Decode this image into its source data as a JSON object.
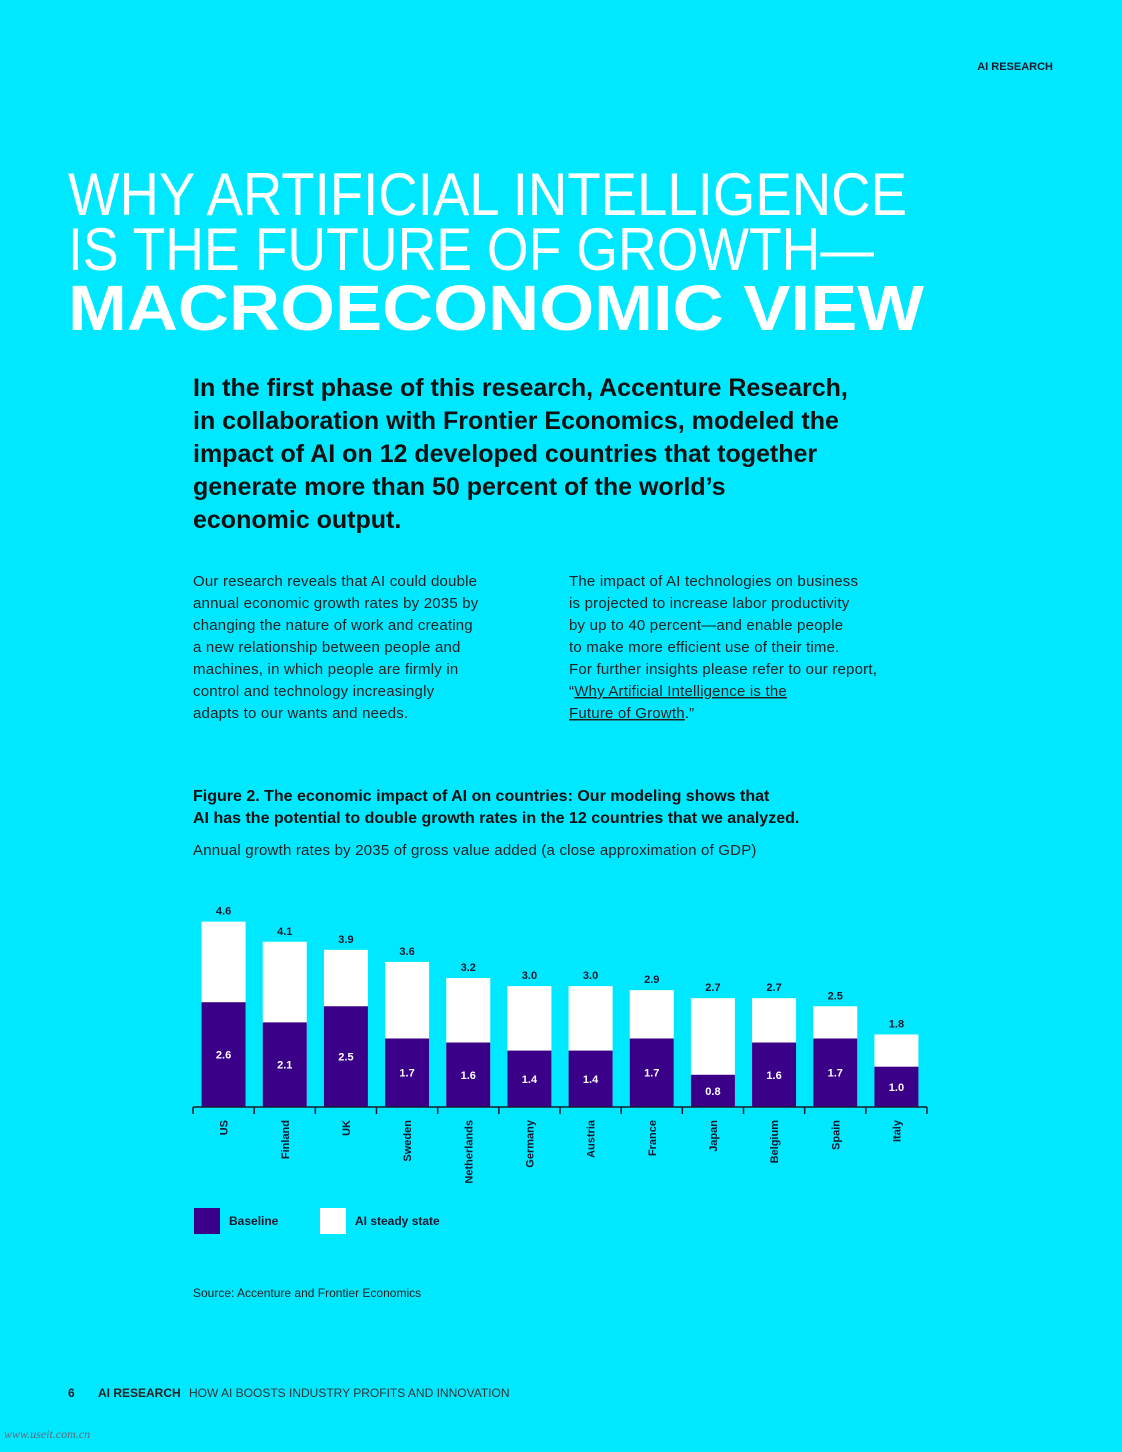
{
  "header": {
    "section": "AI RESEARCH"
  },
  "title": {
    "lines": [
      "WHY ARTIFICIAL INTELLIGENCE",
      "IS THE FUTURE OF GROWTH—"
    ],
    "emphasis": "MACROECONOMIC VIEW"
  },
  "intro": [
    "In the first phase of this research, Accenture Research,",
    "in collaboration with Frontier Economics, modeled the",
    "impact of AI on 12 developed countries that together",
    "generate more than 50 percent of the world’s",
    "economic output."
  ],
  "body": {
    "left": [
      "Our research reveals that AI could double",
      "annual economic growth rates by 2035 by",
      "changing the nature of work and creating",
      "a new relationship between people and",
      "machines, in which people are firmly in",
      "control and technology increasingly",
      "adapts to our wants and needs."
    ],
    "right": [
      "The impact of AI technologies on business",
      "is projected to increase labor productivity",
      "by up to 40 percent—and enable people",
      "to make more efficient use of their time.",
      "For further insights please refer to our report,"
    ],
    "link_open": "“",
    "link": [
      "Why Artificial Intelligence is the",
      "Future of Growth"
    ],
    "link_close": ".”"
  },
  "chart_data": {
    "type": "bar",
    "title": [
      "Figure 2. The economic impact of AI on countries: Our modeling shows that",
      "AI has the potential to double growth rates in the 12 countries that we analyzed."
    ],
    "subtitle": "Annual growth rates by 2035 of gross value added (a close approximation of GDP)",
    "categories": [
      "US",
      "Finland",
      "UK",
      "Sweden",
      "Netherlands",
      "Germany",
      "Austria",
      "France",
      "Japan",
      "Belgium",
      "Spain",
      "Italy"
    ],
    "series": [
      {
        "name": "Baseline",
        "color": "#3a0088",
        "values": [
          2.6,
          2.1,
          2.5,
          1.7,
          1.6,
          1.4,
          1.4,
          1.7,
          0.8,
          1.6,
          1.7,
          1.0
        ],
        "value_labels": [
          "2.6",
          "2.1",
          "2.5",
          "1.7",
          "1.6",
          "1.4",
          "1.4",
          "1.7",
          "0.8",
          "1.6",
          "1.7",
          "1.0"
        ]
      },
      {
        "name": "AI steady state",
        "color": "#ffffff",
        "values": [
          4.6,
          4.1,
          3.9,
          3.6,
          3.2,
          3,
          3,
          2.9,
          2.7,
          2.7,
          2.5,
          1.8
        ],
        "value_labels": [
          "4.6",
          "4.1",
          "3.9",
          "3.6",
          "3.2",
          "3.0",
          "3.0",
          "2.9",
          "2.7",
          "2.7",
          "2.5",
          "1.8"
        ]
      }
    ],
    "source": "Source: Accenture and Frontier Economics"
  },
  "footer": {
    "page": "6",
    "section": "AI RESEARCH",
    "subtitle": "HOW AI BOOSTS INDUSTRY PROFITS AND INNOVATION"
  },
  "watermark": "www.useit.com.cn"
}
